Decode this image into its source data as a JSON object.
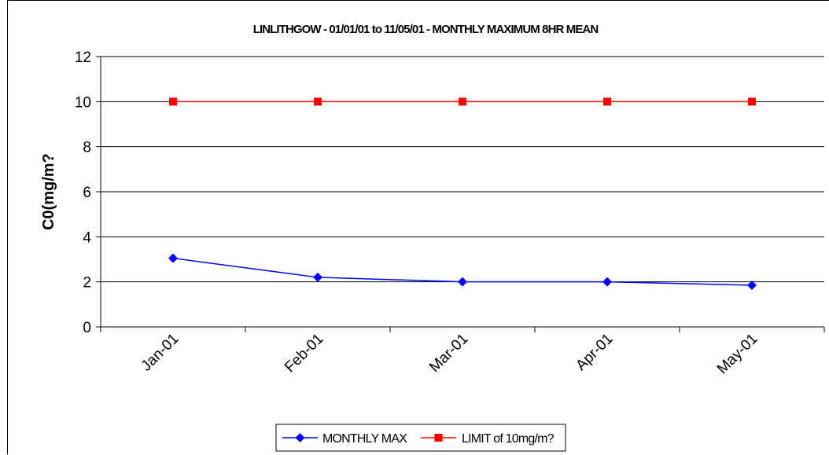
{
  "chart_data": {
    "type": "line",
    "title": "LINLITHGOW - 01/01/01 to 11/05/01 - MONTHLY MAXIMUM 8HR MEAN",
    "xlabel": "",
    "ylabel": "C0(mg/m?",
    "categories": [
      "Jan-01",
      "Feb-01",
      "Mar-01",
      "Apr-01",
      "May-01"
    ],
    "series": [
      {
        "name": "MONTHLY MAX",
        "values": [
          3.05,
          2.2,
          2.0,
          2.0,
          1.85
        ],
        "color": "#0000ff",
        "marker": "diamond"
      },
      {
        "name": "LIMIT of 10mg/m?",
        "values": [
          10,
          10,
          10,
          10,
          10
        ],
        "color": "#ff0000",
        "marker": "square"
      }
    ],
    "ylim": [
      0,
      12
    ],
    "yticks": [
      "0",
      "2",
      "4",
      "6",
      "8",
      "10",
      "12"
    ],
    "grid": true,
    "legend_position": "bottom"
  }
}
